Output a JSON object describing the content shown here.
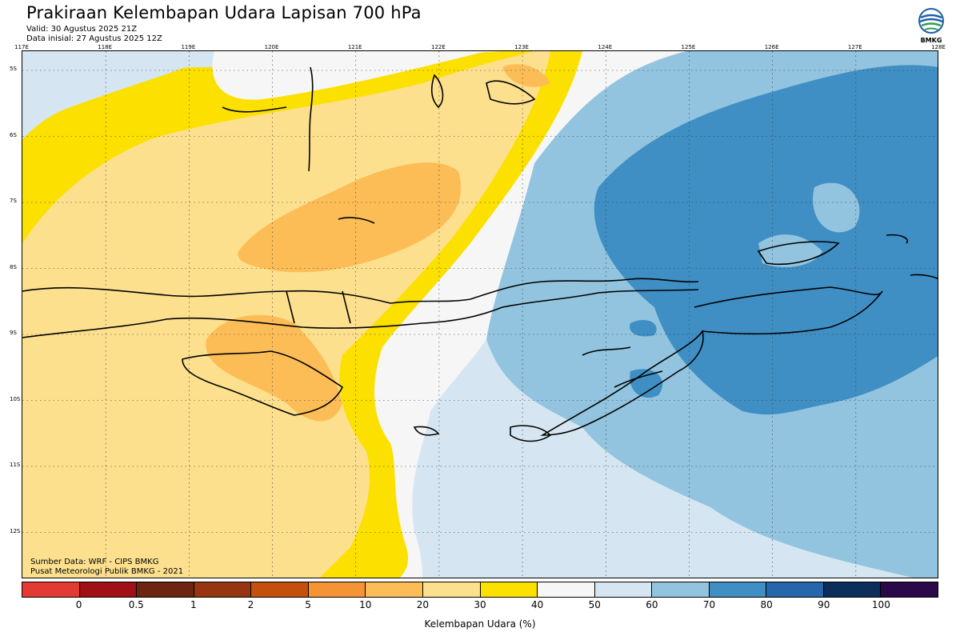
{
  "header": {
    "title": "Prakiraan Kelembapan Udara Lapisan 700 hPa",
    "valid": "Valid: 30 Agustus 2025 21Z",
    "init": "Data inisial: 27 Agustus 2025 12Z"
  },
  "logo": {
    "name": "BMKG"
  },
  "axes": {
    "lon_labels": [
      "117E",
      "118E",
      "119E",
      "120E",
      "121E",
      "122E",
      "123E",
      "124E",
      "125E",
      "126E",
      "127E",
      "128E"
    ],
    "lat_labels": [
      "5S",
      "6S",
      "7S",
      "8S",
      "9S",
      "10S",
      "11S",
      "12S"
    ]
  },
  "credits": {
    "source": "Sumber Data: WRF - CIPS BMKG",
    "org": "Pusat Meteorologi Publik BMKG - 2021"
  },
  "colorbar": {
    "title": "Kelembapan Udara (%)",
    "ticks": [
      "0",
      "0.5",
      "1",
      "2",
      "5",
      "10",
      "20",
      "30",
      "40",
      "50",
      "60",
      "70",
      "80",
      "90",
      "100"
    ],
    "colors": [
      "#e33b34",
      "#a01015",
      "#6d2410",
      "#963510",
      "#c5500e",
      "#f59434",
      "#fcbd57",
      "#fde08e",
      "#fbe000",
      "#f6f6f6",
      "#d5e6f2",
      "#92c4df",
      "#3f8fc4",
      "#2566ad",
      "#0c2e5a",
      "#2a0849"
    ]
  }
}
